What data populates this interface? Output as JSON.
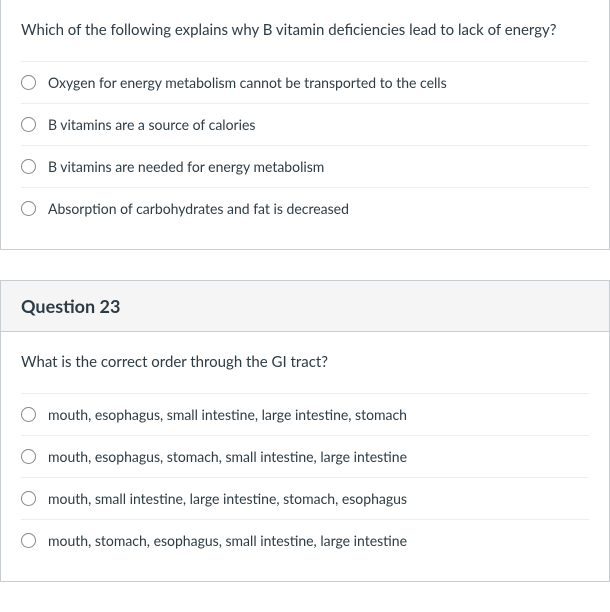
{
  "questions": [
    {
      "header": null,
      "text": "Which of the following explains why B vitamin deficiencies lead to lack of energy?",
      "options": [
        "Oxygen for energy metabolism cannot be transported to the cells",
        "B vitamins are a source of calories",
        "B vitamins are needed for energy metabolism",
        "Absorption of carbohydrates and fat is decreased"
      ]
    },
    {
      "header": "Question 23",
      "text": "What is the correct order through the GI tract?",
      "options": [
        "mouth, esophagus, small intestine, large intestine, stomach",
        "mouth, esophagus, stomach, small intestine, large intestine",
        "mouth, small intestine, large intestine, stomach, esophagus",
        "mouth, stomach, esophagus, small intestine, large intestine"
      ]
    }
  ],
  "styling": {
    "card_border_color": "#c7cdd1",
    "header_bg": "#f5f5f5",
    "text_color": "#2d3b45",
    "option_divider": "#eeeeee",
    "body_bg": "#ffffff",
    "question_fontsize": 15,
    "option_fontsize": 14,
    "header_fontsize": 18
  }
}
